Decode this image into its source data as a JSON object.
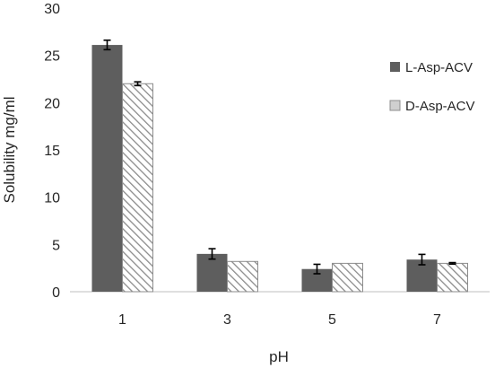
{
  "chart_data": {
    "type": "bar",
    "title": "",
    "xlabel": "pH",
    "ylabel": "Solubility mg/ml",
    "categories": [
      "1",
      "3",
      "5",
      "7"
    ],
    "ylim": [
      0,
      30
    ],
    "yticks": [
      0,
      5,
      10,
      15,
      20,
      25,
      30
    ],
    "grid": false,
    "legend_position": "right",
    "series": [
      {
        "name": "L-Asp-ACV",
        "values": [
          26.1,
          4.0,
          2.4,
          3.4
        ],
        "errors": [
          0.5,
          0.55,
          0.5,
          0.55
        ],
        "fill": "solid",
        "color": "#5e5e5e"
      },
      {
        "name": "D-Asp-ACV",
        "values": [
          22.0,
          3.2,
          3.0,
          3.0
        ],
        "errors": [
          0.2,
          0.0,
          0.0,
          0.08
        ],
        "fill": "hatched",
        "color": "#8c8c8c"
      }
    ]
  }
}
